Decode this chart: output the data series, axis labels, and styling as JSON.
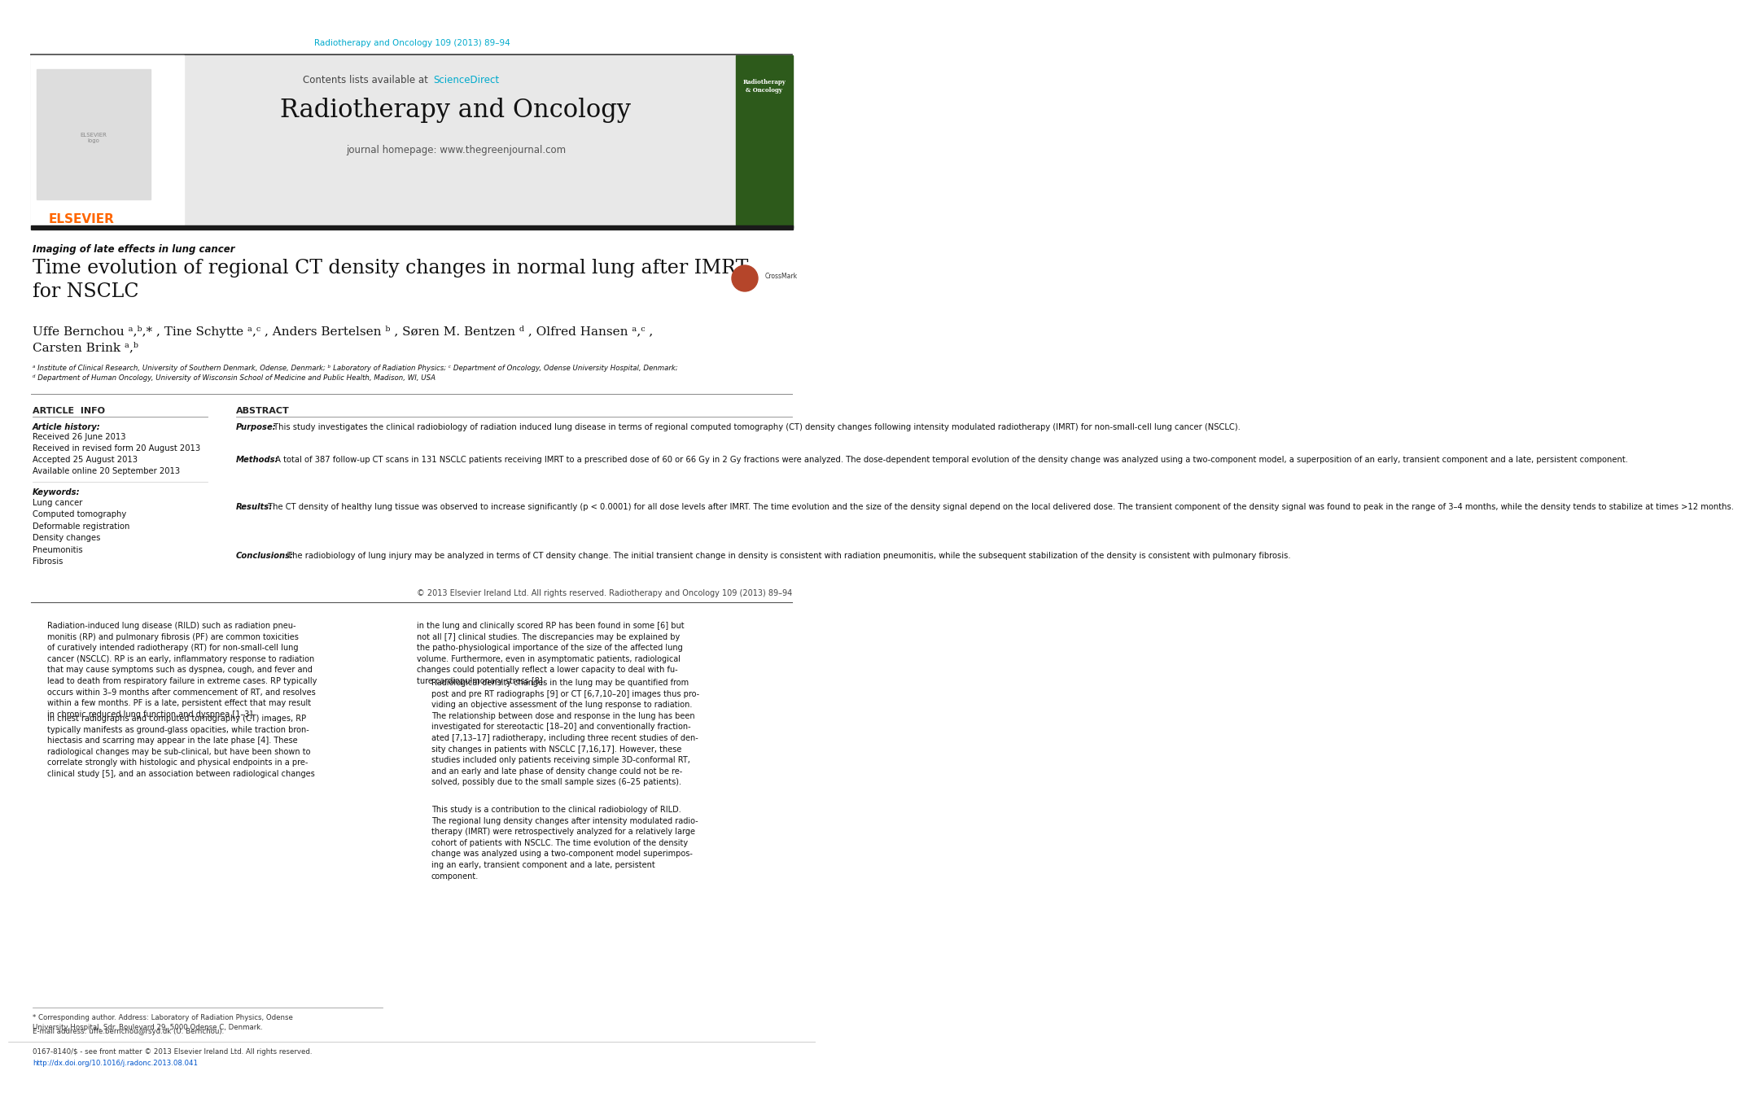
{
  "page_bg": "#ffffff",
  "journal_ref_color": "#00aacc",
  "journal_ref": "Radiotherapy and Oncology 109 (2013) 89–94",
  "header_bg": "#e8e8e8",
  "header_journal_name": "Radiotherapy and Oncology",
  "header_journal_url": "journal homepage: www.thegreenjournal.com",
  "sciencedirect_color": "#00aacc",
  "section_label": "Imaging of late effects in lung cancer",
  "article_title": "Time evolution of regional CT density changes in normal lung after IMRT\nfor NSCLC",
  "article_info_header": "ARTICLE  INFO",
  "abstract_header": "ABSTRACT",
  "article_history_label": "Article history:",
  "article_history": "Received 26 June 2013\nReceived in revised form 20 August 2013\nAccepted 25 August 2013\nAvailable online 20 September 2013",
  "keywords_label": "Keywords:",
  "keywords": "Lung cancer\nComputed tomography\nDeformable registration\nDensity changes\nPneumonitis\nFibrosis",
  "purpose_label": "Purpose:",
  "purpose_text": " This study investigates the clinical radiobiology of radiation induced lung disease in terms of regional computed tomography (CT) density changes following intensity modulated radiotherapy (IMRT) for non-small-cell lung cancer (NSCLC).",
  "methods_label": "Methods:",
  "methods_text": " A total of 387 follow-up CT scans in 131 NSCLC patients receiving IMRT to a prescribed dose of 60 or 66 Gy in 2 Gy fractions were analyzed. The dose-dependent temporal evolution of the density change was analyzed using a two-component model, a superposition of an early, transient component and a late, persistent component.",
  "results_label": "Results:",
  "results_text": " The CT density of healthy lung tissue was observed to increase significantly (p < 0.0001) for all dose levels after IMRT. The time evolution and the size of the density signal depend on the local delivered dose. The transient component of the density signal was found to peak in the range of 3–4 months, while the density tends to stabilize at times >12 months.",
  "conclusions_label": "Conclusions:",
  "conclusions_text": " The radiobiology of lung injury may be analyzed in terms of CT density change. The initial transient change in density is consistent with radiation pneumonitis, while the subsequent stabilization of the density is consistent with pulmonary fibrosis.",
  "copyright": "© 2013 Elsevier Ireland Ltd. All rights reserved. Radiotherapy and Oncology 109 (2013) 89–94",
  "body_col1_para1": "Radiation-induced lung disease (RILD) such as radiation pneu-\nmonitis (RP) and pulmonary fibrosis (PF) are common toxicities\nof curatively intended radiotherapy (RT) for non-small-cell lung\ncancer (NSCLC). RP is an early, inflammatory response to radiation\nthat may cause symptoms such as dyspnea, cough, and fever and\nlead to death from respiratory failure in extreme cases. RP typically\noccurs within 3–9 months after commencement of RT, and resolves\nwithin a few months. PF is a late, persistent effect that may result\nin chronic reduced lung function and dyspnea [1–3].",
  "body_col1_para2": "In chest radiographs and computed tomography (CT) images, RP\ntypically manifests as ground-glass opacities, while traction bron-\nhiectasis and scarring may appear in the late phase [4]. These\nradiological changes may be sub-clinical, but have been shown to\ncorrelate strongly with histologic and physical endpoints in a pre-\nclinical study [5], and an association between radiological changes",
  "body_col2_para1": "in the lung and clinically scored RP has been found in some [6] but\nnot all [7] clinical studies. The discrepancies may be explained by\nthe patho-physiological importance of the size of the affected lung\nvolume. Furthermore, even in asymptomatic patients, radiological\nchanges could potentially reflect a lower capacity to deal with fu-\nture cardiopulmonary stress [8].",
  "body_col2_para2": "Radiological density changes in the lung may be quantified from\npost and pre RT radiographs [9] or CT [6,7,10–20] images thus pro-\nviding an objective assessment of the lung response to radiation.\nThe relationship between dose and response in the lung has been\ninvestigated for stereotactic [18–20] and conventionally fraction-\nated [7,13–17] radiotherapy, including three recent studies of den-\nsity changes in patients with NSCLC [7,16,17]. However, these\nstudies included only patients receiving simple 3D-conformal RT,\nand an early and late phase of density change could not be re-\nsolved, possibly due to the small sample sizes (6–25 patients).",
  "body_col2_para3": "This study is a contribution to the clinical radiobiology of RILD.\nThe regional lung density changes after intensity modulated radio-\ntherapy (IMRT) were retrospectively analyzed for a relatively large\ncohort of patients with NSCLC. The time evolution of the density\nchange was analyzed using a two-component model superimpos-\ning an early, transient component and a late, persistent\ncomponent.",
  "footer_text1": "* Corresponding author. Address: Laboratory of Radiation Physics, Odense\nUniversity Hospital, Sdr. Boulevard 29, 5000 Odense C, Denmark.",
  "footer_text2": "E-mail address: uffe.bernchou@rsyd.dk (U. Bernchou).",
  "footer_issn": "0167-8140/$ - see front matter © 2013 Elsevier Ireland Ltd. All rights reserved.",
  "footer_doi": "http://dx.doi.org/10.1016/j.radonc.2013.08.041",
  "doi_color": "#0055cc",
  "elsevier_color": "#FF6600",
  "header_bar_color": "#1a1a1a",
  "affil_text": "ᵃ Institute of Clinical Research, University of Southern Denmark, Odense, Denmark; ᵇ Laboratory of Radiation Physics; ᶜ Department of Oncology, Odense University Hospital, Denmark;\nᵈ Department of Human Oncology, University of Wisconsin School of Medicine and Public Health, Madison, WI, USA"
}
